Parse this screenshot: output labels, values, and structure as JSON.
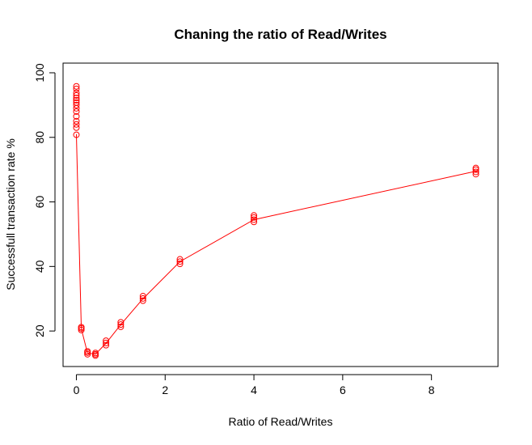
{
  "chart_data": {
    "type": "scatter",
    "title": "Chaning the ratio of Read/Writes",
    "xlabel": "Ratio of Read/Writes",
    "ylabel": "Successfull transaction rate %",
    "xlim": [
      -0.3,
      9.5
    ],
    "ylim": [
      9,
      103
    ],
    "xticks": [
      0,
      2,
      4,
      6,
      8
    ],
    "yticks": [
      20,
      40,
      60,
      80,
      100
    ],
    "series_color": "#ff0000",
    "line": {
      "x": [
        0,
        0.111,
        0.25,
        0.429,
        0.667,
        1,
        1.5,
        2.333,
        4,
        9
      ],
      "y": [
        81,
        20.7,
        13.2,
        12.8,
        16.2,
        22,
        30,
        41.5,
        54.5,
        69.5
      ]
    },
    "points": [
      {
        "x": 0,
        "y": 80.8
      },
      {
        "x": 0,
        "y": 83
      },
      {
        "x": 0,
        "y": 84
      },
      {
        "x": 0,
        "y": 85
      },
      {
        "x": 0,
        "y": 86.5
      },
      {
        "x": 0,
        "y": 88
      },
      {
        "x": 0,
        "y": 89
      },
      {
        "x": 0,
        "y": 90
      },
      {
        "x": 0,
        "y": 90.8
      },
      {
        "x": 0,
        "y": 91.5
      },
      {
        "x": 0,
        "y": 92.2
      },
      {
        "x": 0,
        "y": 93
      },
      {
        "x": 0,
        "y": 93.8
      },
      {
        "x": 0,
        "y": 95
      },
      {
        "x": 0,
        "y": 95.8
      },
      {
        "x": 0.111,
        "y": 20.3
      },
      {
        "x": 0.111,
        "y": 20.8
      },
      {
        "x": 0.111,
        "y": 21.2
      },
      {
        "x": 0.25,
        "y": 12.8
      },
      {
        "x": 0.25,
        "y": 13.3
      },
      {
        "x": 0.25,
        "y": 13.7
      },
      {
        "x": 0.429,
        "y": 12.4
      },
      {
        "x": 0.429,
        "y": 12.8
      },
      {
        "x": 0.429,
        "y": 13.2
      },
      {
        "x": 0.667,
        "y": 15.6
      },
      {
        "x": 0.667,
        "y": 16.3
      },
      {
        "x": 0.667,
        "y": 17
      },
      {
        "x": 1,
        "y": 21.3
      },
      {
        "x": 1,
        "y": 22
      },
      {
        "x": 1,
        "y": 22.7
      },
      {
        "x": 1.5,
        "y": 29.4
      },
      {
        "x": 1.5,
        "y": 30.1
      },
      {
        "x": 1.5,
        "y": 30.8
      },
      {
        "x": 2.333,
        "y": 40.8
      },
      {
        "x": 2.333,
        "y": 41.5
      },
      {
        "x": 2.333,
        "y": 42.2
      },
      {
        "x": 4,
        "y": 53.8
      },
      {
        "x": 4,
        "y": 54.5
      },
      {
        "x": 4,
        "y": 55.2
      },
      {
        "x": 4,
        "y": 55.8
      },
      {
        "x": 9,
        "y": 68.6
      },
      {
        "x": 9,
        "y": 69.3
      },
      {
        "x": 9,
        "y": 70
      },
      {
        "x": 9,
        "y": 70.5
      }
    ]
  }
}
